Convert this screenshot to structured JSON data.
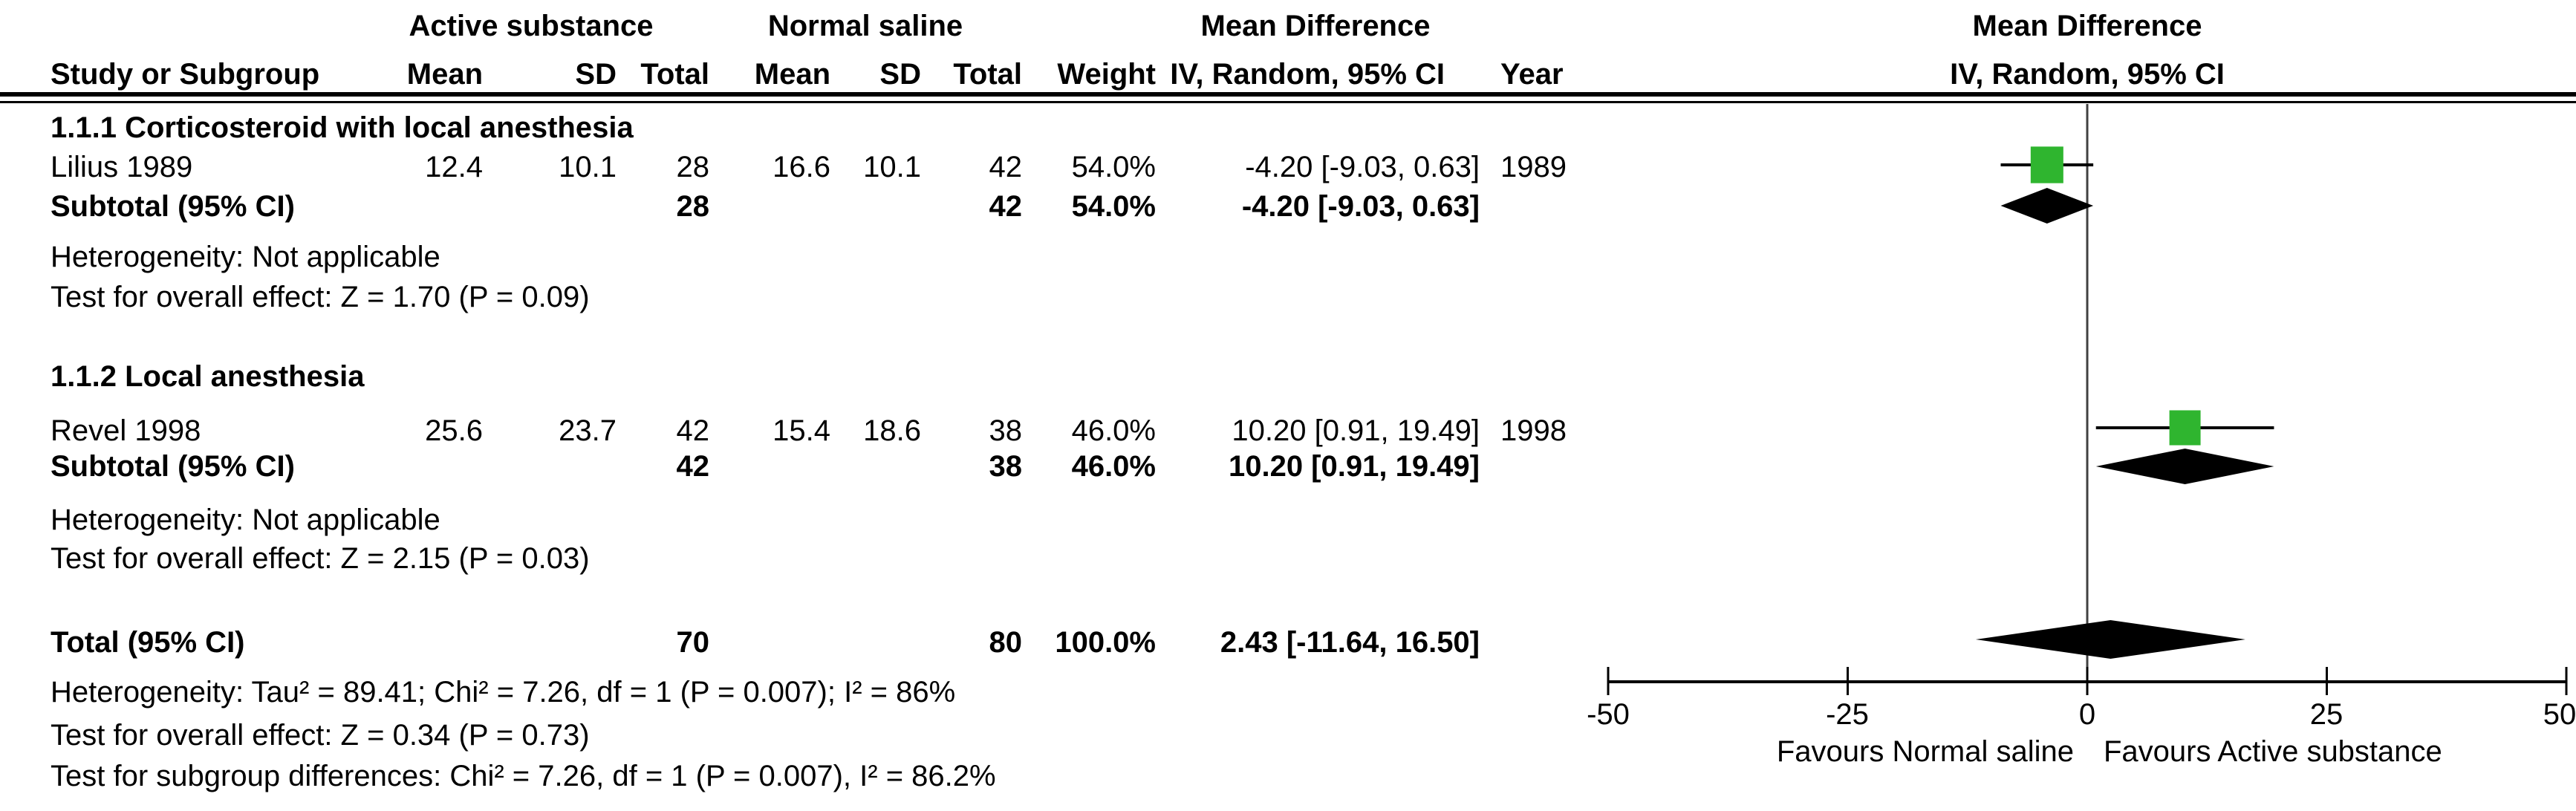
{
  "header": {
    "group1_title": "Active substance",
    "group2_title": "Normal saline",
    "md_title": "Mean Difference",
    "md_subtitle": "IV, Random, 95% CI",
    "plot_title": "Mean Difference",
    "plot_subtitle": "IV, Random, 95% CI",
    "cols": {
      "study": "Study or Subgroup",
      "mean": "Mean",
      "sd": "SD",
      "total": "Total",
      "weight": "Weight",
      "year": "Year"
    }
  },
  "subgroup1": {
    "title": "1.1.1 Corticosteroid with local anesthesia",
    "study": {
      "name": "Lilius 1989",
      "mean1": "12.4",
      "sd1": "10.1",
      "total1": "28",
      "mean2": "16.6",
      "sd2": "10.1",
      "total2": "42",
      "weight": "54.0%",
      "ci": "-4.20 [-9.03, 0.63]",
      "year": "1989"
    },
    "subtotal": {
      "label": "Subtotal (95% CI)",
      "total1": "28",
      "total2": "42",
      "weight": "54.0%",
      "ci": "-4.20 [-9.03, 0.63]"
    },
    "heterogeneity": "Heterogeneity: Not applicable",
    "overall_effect": "Test for overall effect: Z = 1.70 (P = 0.09)"
  },
  "subgroup2": {
    "title": "1.1.2 Local anesthesia",
    "study": {
      "name": "Revel 1998",
      "mean1": "25.6",
      "sd1": "23.7",
      "total1": "42",
      "mean2": "15.4",
      "sd2": "18.6",
      "total2": "38",
      "weight": "46.0%",
      "ci": "10.20 [0.91, 19.49]",
      "year": "1998"
    },
    "subtotal": {
      "label": "Subtotal (95% CI)",
      "total1": "42",
      "total2": "38",
      "weight": "46.0%",
      "ci": "10.20 [0.91, 19.49]"
    },
    "heterogeneity": "Heterogeneity: Not applicable",
    "overall_effect": "Test for overall effect: Z = 2.15 (P = 0.03)"
  },
  "total": {
    "label": "Total (95% CI)",
    "total1": "70",
    "total2": "80",
    "weight": "100.0%",
    "ci": "2.43 [-11.64, 16.50]"
  },
  "footer": {
    "heterogeneity": "Heterogeneity: Tau² = 89.41; Chi² = 7.26, df = 1 (P = 0.007); I² = 86%",
    "overall_effect": "Test for overall effect: Z = 0.34 (P = 0.73)",
    "subgroup_differences": "Test for subgroup differences: Chi² = 7.26, df = 1 (P = 0.007), I² = 86.2%"
  },
  "axis": {
    "ticks": [
      "-50",
      "-25",
      "0",
      "25",
      "50"
    ],
    "favours_left": "Favours Normal saline",
    "favours_right": "Favours Active substance"
  },
  "colors": {
    "square": "#2fb52f",
    "diamond": "#000000",
    "line": "#000000",
    "zero_line": "#404040"
  },
  "chart_data": {
    "type": "forest",
    "effect_measure": "Mean Difference, IV, Random, 95% CI",
    "xlim": [
      -50,
      50
    ],
    "x_ticks": [
      -50,
      -25,
      0,
      25,
      50
    ],
    "studies": [
      {
        "label": "Lilius 1989",
        "md": -4.2,
        "ci_low": -9.03,
        "ci_high": 0.63,
        "weight": 54.0,
        "row": "study1"
      },
      {
        "label": "Revel 1998",
        "md": 10.2,
        "ci_low": 0.91,
        "ci_high": 19.49,
        "weight": 46.0,
        "row": "study2"
      }
    ],
    "diamonds": [
      {
        "label": "Subtotal 1.1.1",
        "md": -4.2,
        "ci_low": -9.03,
        "ci_high": 0.63,
        "row": "subtotal1"
      },
      {
        "label": "Subtotal 1.1.2",
        "md": 10.2,
        "ci_low": 0.91,
        "ci_high": 19.49,
        "row": "subtotal2"
      },
      {
        "label": "Total",
        "md": 2.43,
        "ci_low": -11.64,
        "ci_high": 16.5,
        "row": "total"
      }
    ],
    "legend_left": "Favours Normal saline",
    "legend_right": "Favours Active substance"
  }
}
